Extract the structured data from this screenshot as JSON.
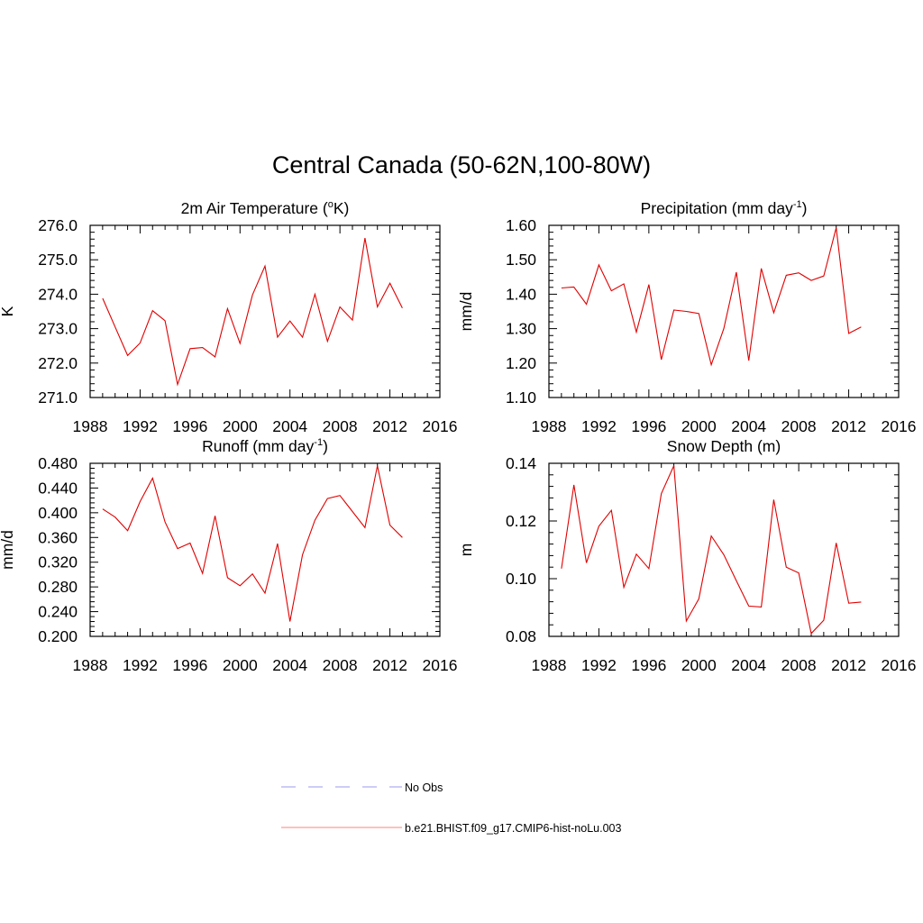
{
  "title": "Central Canada (50-62N,100-80W)",
  "colors": {
    "model": "#e00000",
    "obs": "#9999ee",
    "axis": "#000000"
  },
  "legend": {
    "entries": [
      {
        "label": "No Obs",
        "style": "dashed",
        "color": "#9999ee"
      },
      {
        "label": "b.e21.BHIST.f09_g17.CMIP6-hist-noLu.003",
        "style": "solid",
        "color": "#ff8080"
      }
    ]
  },
  "chart_data": [
    {
      "type": "line",
      "title": "2m Air Temperature (",
      "title_sup": "o",
      "title_end": "K)",
      "ylabel": "K",
      "xlim": [
        1988,
        2016
      ],
      "ylim": [
        271.0,
        276.0
      ],
      "xticks": [
        "1988",
        "1992",
        "1996",
        "2000",
        "2004",
        "2008",
        "2012",
        "2016"
      ],
      "yticks": [
        "271.0",
        "272.0",
        "273.0",
        "274.0",
        "275.0",
        "276.0"
      ],
      "x": [
        1989,
        1990,
        1991,
        1992,
        1993,
        1994,
        1995,
        1996,
        1997,
        1998,
        1999,
        2000,
        2001,
        2002,
        2003,
        2004,
        2005,
        2006,
        2007,
        2008,
        2009,
        2010,
        2011,
        2012,
        2013
      ],
      "series": [
        {
          "name": "b.e21.BHIST.f09_g17.CMIP6-hist-noLu.003",
          "values": [
            273.88,
            273.05,
            272.22,
            272.58,
            273.52,
            273.23,
            271.38,
            272.42,
            272.45,
            272.18,
            273.58,
            272.57,
            273.98,
            274.82,
            272.75,
            273.22,
            272.75,
            274.0,
            272.63,
            273.63,
            273.25,
            275.63,
            273.63,
            274.32,
            273.6
          ]
        }
      ]
    },
    {
      "type": "line",
      "title": "Precipitation (mm day",
      "title_sup": "-1",
      "title_end": ")",
      "ylabel": "mm/d",
      "xlim": [
        1988,
        2016
      ],
      "ylim": [
        1.1,
        1.6
      ],
      "xticks": [
        "1988",
        "1992",
        "1996",
        "2000",
        "2004",
        "2008",
        "2012",
        "2016"
      ],
      "yticks": [
        "1.10",
        "1.20",
        "1.30",
        "1.40",
        "1.50",
        "1.60"
      ],
      "x": [
        1989,
        1990,
        1991,
        1992,
        1993,
        1994,
        1995,
        1996,
        1997,
        1998,
        1999,
        2000,
        2001,
        2002,
        2003,
        2004,
        2005,
        2006,
        2007,
        2008,
        2009,
        2010,
        2011,
        2012,
        2013
      ],
      "series": [
        {
          "name": "b.e21.BHIST.f09_g17.CMIP6-hist-noLu.003",
          "values": [
            1.418,
            1.421,
            1.371,
            1.485,
            1.41,
            1.43,
            1.29,
            1.428,
            1.21,
            1.354,
            1.35,
            1.344,
            1.195,
            1.3,
            1.464,
            1.207,
            1.475,
            1.346,
            1.455,
            1.462,
            1.44,
            1.453,
            1.593,
            1.286,
            1.305
          ]
        }
      ]
    },
    {
      "type": "line",
      "title": "Runoff (mm day",
      "title_sup": "-1",
      "title_end": ")",
      "ylabel": "mm/d",
      "xlim": [
        1988,
        2016
      ],
      "ylim": [
        0.2,
        0.48
      ],
      "xticks": [
        "1988",
        "1992",
        "1996",
        "2000",
        "2004",
        "2008",
        "2012",
        "2016"
      ],
      "yticks": [
        "0.200",
        "0.240",
        "0.280",
        "0.320",
        "0.360",
        "0.400",
        "0.440",
        "0.480"
      ],
      "x": [
        1989,
        1990,
        1991,
        1992,
        1993,
        1994,
        1995,
        1996,
        1997,
        1998,
        1999,
        2000,
        2001,
        2002,
        2003,
        2004,
        2005,
        2006,
        2007,
        2008,
        2009,
        2010,
        2011,
        2012,
        2013
      ],
      "series": [
        {
          "name": "b.e21.BHIST.f09_g17.CMIP6-hist-noLu.003",
          "values": [
            0.406,
            0.393,
            0.371,
            0.418,
            0.456,
            0.385,
            0.342,
            0.351,
            0.302,
            0.395,
            0.295,
            0.282,
            0.301,
            0.27,
            0.35,
            0.224,
            0.332,
            0.388,
            0.423,
            0.428,
            0.402,
            0.376,
            0.476,
            0.38,
            0.36
          ]
        }
      ]
    },
    {
      "type": "line",
      "title": "Snow Depth (m)",
      "title_sup": "",
      "title_end": "",
      "ylabel": "m",
      "xlim": [
        1988,
        2016
      ],
      "ylim": [
        0.08,
        0.14
      ],
      "xticks": [
        "1988",
        "1992",
        "1996",
        "2000",
        "2004",
        "2008",
        "2012",
        "2016"
      ],
      "yticks": [
        "0.08",
        "0.10",
        "0.12",
        "0.14"
      ],
      "x": [
        1989,
        1990,
        1991,
        1992,
        1993,
        1994,
        1995,
        1996,
        1997,
        1998,
        1999,
        2000,
        2001,
        2002,
        2003,
        2004,
        2005,
        2006,
        2007,
        2008,
        2009,
        2010,
        2011,
        2012,
        2013
      ],
      "series": [
        {
          "name": "b.e21.BHIST.f09_g17.CMIP6-hist-noLu.003",
          "values": [
            0.1035,
            0.1325,
            0.1055,
            0.1182,
            0.1237,
            0.097,
            0.1085,
            0.1035,
            0.1295,
            0.1392,
            0.0853,
            0.093,
            0.1148,
            0.1083,
            0.0993,
            0.0905,
            0.0902,
            0.1274,
            0.104,
            0.102,
            0.081,
            0.0856,
            0.1124,
            0.0915,
            0.0919
          ]
        }
      ]
    }
  ]
}
